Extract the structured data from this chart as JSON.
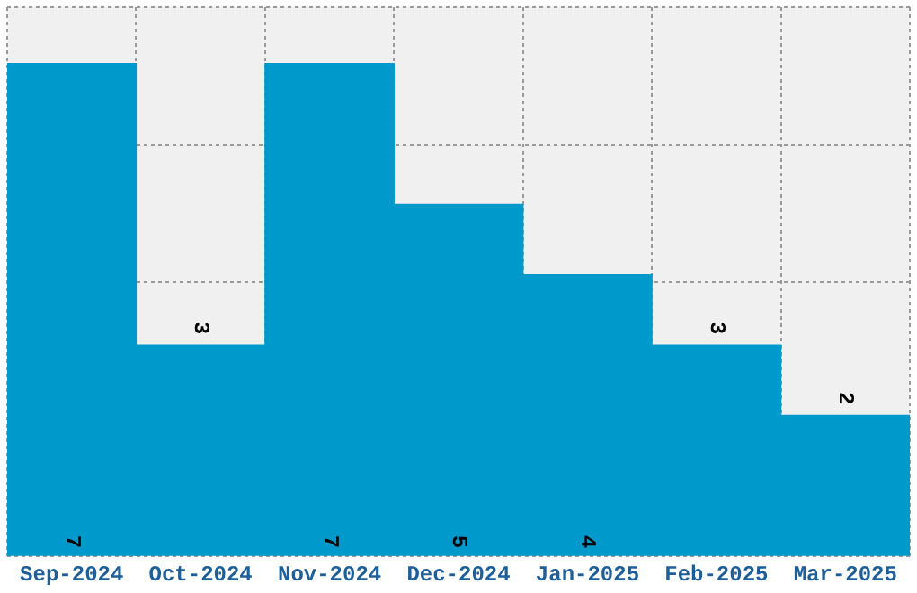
{
  "chart_data": {
    "type": "bar",
    "categories": [
      "Sep-2024",
      "Oct-2024",
      "Nov-2024",
      "Dec-2024",
      "Jan-2025",
      "Feb-2025",
      "Mar-2025"
    ],
    "values": [
      7,
      3,
      7,
      5,
      4,
      3,
      2
    ],
    "color": "#0099cc",
    "data_labels": true,
    "grid": true,
    "ylim": [
      0,
      7.8
    ],
    "tick_labels": "x"
  }
}
